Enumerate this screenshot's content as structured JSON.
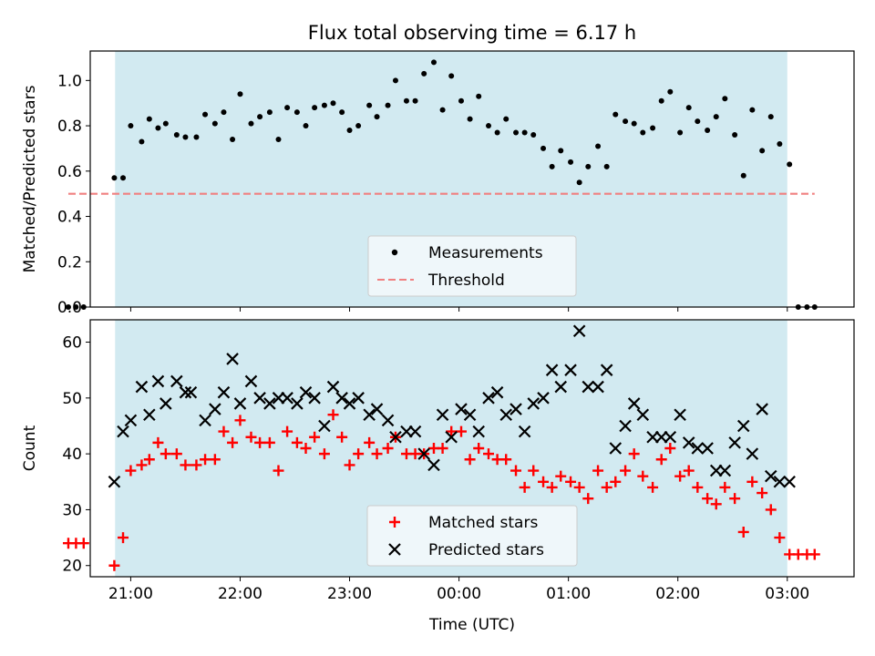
{
  "title": "Flux total observing time = 6.17 h",
  "chart_data": [
    {
      "type": "scatter",
      "panel": "top",
      "ylabel": "Matched/Predicted stars",
      "ylim": [
        0,
        1.13
      ],
      "yticks": [
        0.0,
        0.2,
        0.4,
        0.6,
        0.8,
        1.0
      ],
      "yticklabels": [
        "0.0",
        "0.2",
        "0.4",
        "0.6",
        "0.8",
        "1.0"
      ],
      "x_unit": "hours after 00:00 UTC (date axis)",
      "xlim": [
        20.63,
        27.61
      ],
      "shaded_span": [
        20.857,
        27.0
      ],
      "shaded_color": "#add8e6",
      "legend": {
        "placement": "lower center",
        "entries": [
          "Measurements",
          "Threshold"
        ]
      },
      "series": [
        {
          "name": "Measurements",
          "marker": "dot",
          "color": "#000000",
          "x": [
            20.43,
            20.5,
            20.57,
            20.85,
            20.93,
            21.0,
            21.1,
            21.17,
            21.25,
            21.32,
            21.42,
            21.5,
            21.6,
            21.68,
            21.77,
            21.85,
            21.93,
            22.0,
            22.1,
            22.18,
            22.27,
            22.35,
            22.43,
            22.52,
            22.6,
            22.68,
            22.77,
            22.85,
            22.93,
            23.0,
            23.08,
            23.18,
            23.25,
            23.35,
            23.42,
            23.52,
            23.6,
            23.68,
            23.77,
            23.85,
            23.93,
            24.02,
            24.1,
            24.18,
            24.27,
            24.35,
            24.43,
            24.52,
            24.6,
            24.68,
            24.77,
            24.85,
            24.93,
            25.02,
            25.1,
            25.18,
            25.27,
            25.35,
            25.43,
            25.52,
            25.6,
            25.68,
            25.77,
            25.85,
            25.93,
            26.02,
            26.1,
            26.18,
            26.27,
            26.35,
            26.43,
            26.52,
            26.6,
            26.68,
            26.77,
            26.85,
            26.93,
            27.02,
            27.1,
            27.18,
            27.25
          ],
          "y": [
            0.0,
            0.0,
            0.0,
            0.57,
            0.57,
            0.8,
            0.73,
            0.83,
            0.79,
            0.81,
            0.76,
            0.75,
            0.75,
            0.85,
            0.81,
            0.86,
            0.74,
            0.94,
            0.81,
            0.84,
            0.86,
            0.74,
            0.88,
            0.86,
            0.8,
            0.88,
            0.89,
            0.9,
            0.86,
            0.78,
            0.8,
            0.89,
            0.84,
            0.89,
            1.0,
            0.91,
            0.91,
            1.03,
            1.08,
            0.87,
            1.02,
            0.91,
            0.83,
            0.93,
            0.8,
            0.77,
            0.83,
            0.77,
            0.77,
            0.76,
            0.7,
            0.62,
            0.69,
            0.64,
            0.55,
            0.62,
            0.71,
            0.62,
            0.85,
            0.82,
            0.81,
            0.77,
            0.79,
            0.91,
            0.95,
            0.77,
            0.88,
            0.82,
            0.78,
            0.84,
            0.92,
            0.76,
            0.58,
            0.87,
            0.69,
            0.84,
            0.72,
            0.63,
            0.0,
            0.0,
            0.0
          ]
        },
        {
          "name": "Threshold",
          "style": "dashed",
          "color": "#f08080",
          "x": [
            20.43,
            27.25
          ],
          "y": [
            0.5,
            0.5
          ]
        }
      ]
    },
    {
      "type": "scatter",
      "panel": "bottom",
      "ylabel": "Count",
      "xlabel": "Time (UTC)",
      "ylim": [
        18,
        64
      ],
      "yticks": [
        20,
        30,
        40,
        50,
        60
      ],
      "yticklabels": [
        "20",
        "30",
        "40",
        "50",
        "60"
      ],
      "x_unit": "hours after 00:00 UTC (date axis)",
      "xlim": [
        20.63,
        27.61
      ],
      "xticks": [
        21,
        22,
        23,
        24,
        25,
        26,
        27
      ],
      "xticklabels": [
        "21:00",
        "22:00",
        "23:00",
        "00:00",
        "01:00",
        "02:00",
        "03:00"
      ],
      "shaded_span": [
        20.857,
        27.0
      ],
      "shaded_color": "#add8e6",
      "legend": {
        "placement": "lower center",
        "entries": [
          "Matched stars",
          "Predicted stars"
        ]
      },
      "series": [
        {
          "name": "Matched stars",
          "marker": "plus",
          "color": "#ff0000",
          "x": [
            20.43,
            20.5,
            20.57,
            20.85,
            20.93,
            21.0,
            21.1,
            21.17,
            21.25,
            21.32,
            21.42,
            21.5,
            21.6,
            21.68,
            21.77,
            21.85,
            21.93,
            22.0,
            22.1,
            22.18,
            22.27,
            22.35,
            22.43,
            22.52,
            22.6,
            22.68,
            22.77,
            22.85,
            22.93,
            23.0,
            23.08,
            23.18,
            23.25,
            23.35,
            23.42,
            23.52,
            23.6,
            23.68,
            23.77,
            23.85,
            23.93,
            24.02,
            24.1,
            24.18,
            24.27,
            24.35,
            24.43,
            24.52,
            24.6,
            24.68,
            24.77,
            24.85,
            24.93,
            25.02,
            25.1,
            25.18,
            25.27,
            25.35,
            25.43,
            25.52,
            25.6,
            25.68,
            25.77,
            25.85,
            25.93,
            26.02,
            26.1,
            26.18,
            26.27,
            26.35,
            26.43,
            26.52,
            26.6,
            26.68,
            26.77,
            26.85,
            26.93,
            27.02,
            27.1,
            27.18,
            27.25
          ],
          "y": [
            24,
            24,
            24,
            20,
            25,
            37,
            38,
            39,
            42,
            40,
            40,
            38,
            38,
            39,
            39,
            44,
            42,
            46,
            43,
            42,
            42,
            37,
            44,
            42,
            41,
            43,
            40,
            47,
            43,
            38,
            40,
            42,
            40,
            41,
            43,
            40,
            40,
            40,
            41,
            41,
            44,
            44,
            39,
            41,
            40,
            39,
            39,
            37,
            34,
            37,
            35,
            34,
            36,
            35,
            34,
            32,
            37,
            34,
            35,
            37,
            40,
            36,
            34,
            39,
            41,
            36,
            37,
            34,
            32,
            31,
            34,
            32,
            26,
            35,
            33,
            30,
            25,
            22,
            22,
            22,
            22
          ]
        },
        {
          "name": "Predicted stars",
          "marker": "x",
          "color": "#000000",
          "x": [
            20.85,
            20.93,
            21.0,
            21.1,
            21.17,
            21.25,
            21.32,
            21.42,
            21.5,
            21.55,
            21.68,
            21.77,
            21.85,
            21.93,
            22.0,
            22.1,
            22.18,
            22.27,
            22.35,
            22.43,
            22.52,
            22.6,
            22.68,
            22.77,
            22.85,
            22.93,
            23.0,
            23.08,
            23.18,
            23.25,
            23.35,
            23.42,
            23.52,
            23.6,
            23.68,
            23.77,
            23.85,
            23.93,
            24.02,
            24.1,
            24.18,
            24.27,
            24.35,
            24.43,
            24.52,
            24.6,
            24.68,
            24.77,
            24.85,
            24.93,
            25.02,
            25.1,
            25.18,
            25.27,
            25.35,
            25.43,
            25.52,
            25.6,
            25.68,
            25.77,
            25.85,
            25.93,
            26.02,
            26.1,
            26.18,
            26.27,
            26.35,
            26.43,
            26.52,
            26.6,
            26.68,
            26.77,
            26.85,
            26.93,
            27.02
          ],
          "y": [
            35,
            44,
            46,
            52,
            47,
            53,
            49,
            53,
            51,
            51,
            46,
            48,
            51,
            57,
            49,
            53,
            50,
            49,
            50,
            50,
            49,
            51,
            50,
            45,
            52,
            50,
            49,
            50,
            47,
            48,
            46,
            43,
            44,
            44,
            40,
            38,
            47,
            43,
            48,
            47,
            44,
            50,
            51,
            47,
            48,
            44,
            49,
            50,
            55,
            52,
            55,
            62,
            52,
            52,
            55,
            41,
            45,
            49,
            47,
            43,
            43,
            43,
            47,
            42,
            41,
            41,
            37,
            37,
            42,
            45,
            40,
            48,
            36,
            35,
            35
          ]
        }
      ]
    }
  ]
}
